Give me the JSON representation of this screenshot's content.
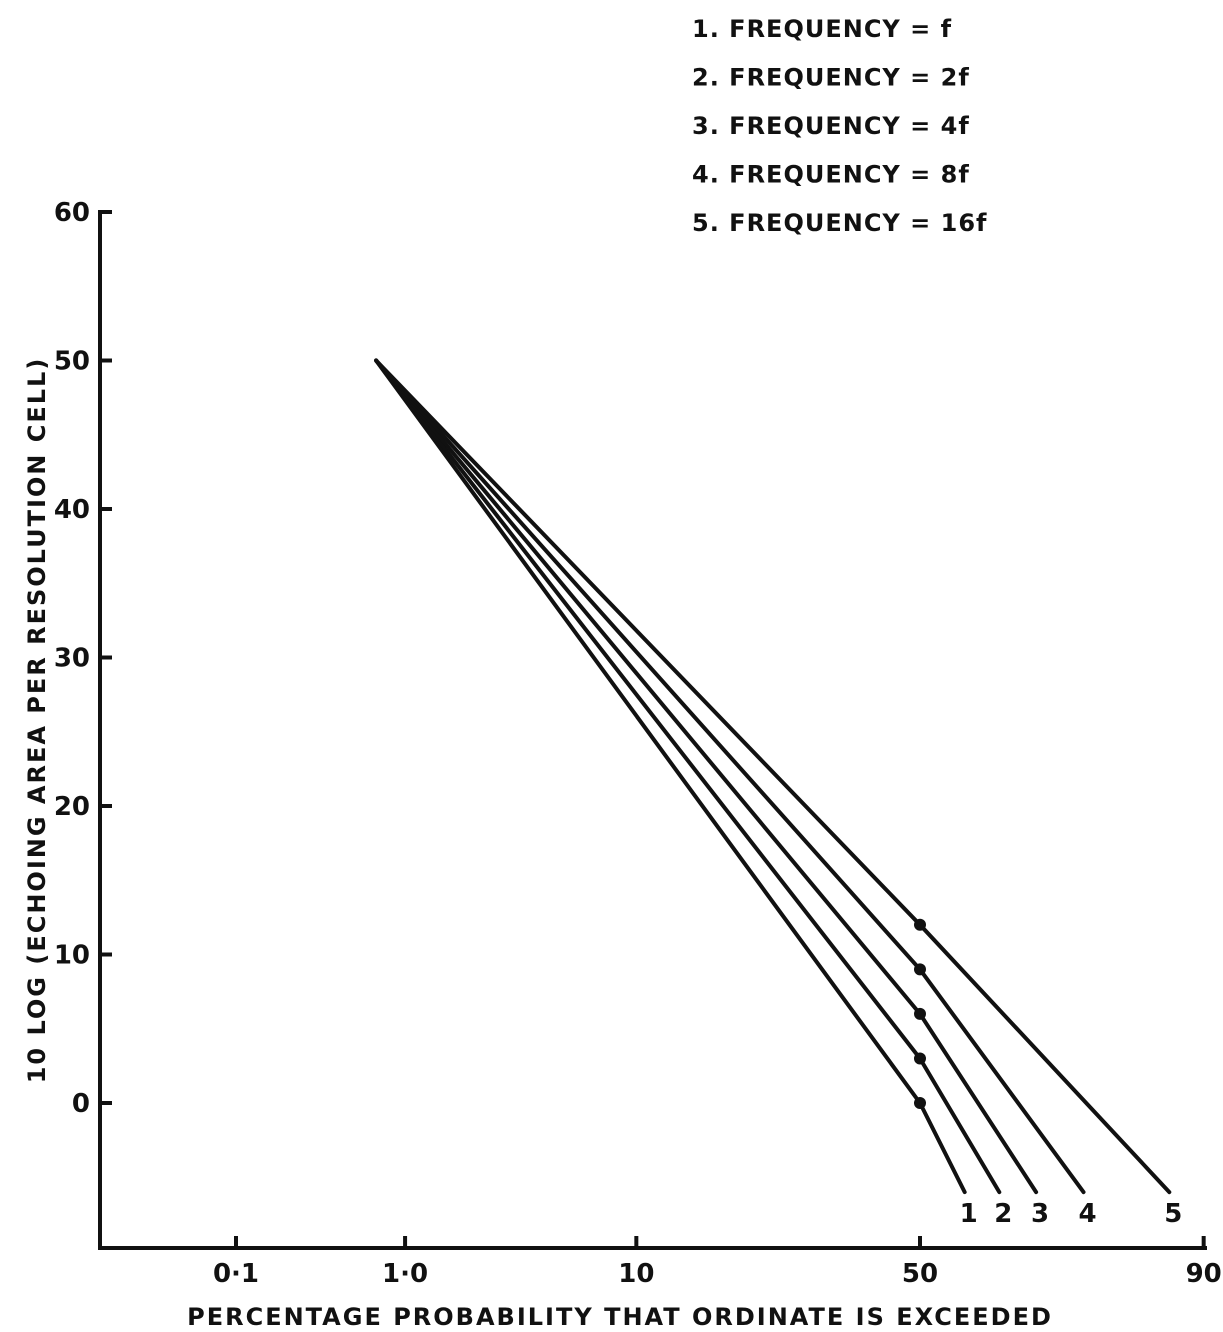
{
  "chart_data": {
    "type": "line",
    "title": "",
    "xlabel": "PERCENTAGE  PROBABILITY  THAT  ORDINATE  IS  EXCEEDED",
    "ylabel": "10 LOG (ECHOING  AREA PER  RESOLUTION CELL)",
    "x_scale": "normal-probability",
    "x_ticks": [
      0.1,
      1.0,
      10,
      50,
      90
    ],
    "x_tick_labels": [
      "0·1",
      "1·0",
      "10",
      "50",
      "90"
    ],
    "y_ticks": [
      0,
      10,
      20,
      30,
      40,
      50,
      60
    ],
    "y_tick_labels": [
      "0",
      "10",
      "20",
      "30",
      "40",
      "50",
      "60"
    ],
    "ylim": [
      -9,
      60
    ],
    "grid": false,
    "legend_position": "top-right",
    "legend": [
      "1. FREQUENCY = f",
      "2. FREQUENCY = 2f",
      "3. FREQUENCY = 4f",
      "4. FREQUENCY = 8f",
      "5. FREQUENCY = 16f"
    ],
    "series": [
      {
        "label": "1",
        "x": [
          0.7,
          50,
          58
        ],
        "y": [
          50,
          0,
          -6
        ],
        "marker_x": 50,
        "marker_y": 0
      },
      {
        "label": "2",
        "x": [
          0.7,
          50,
          64
        ],
        "y": [
          50,
          3,
          -6
        ],
        "marker_x": 50,
        "marker_y": 3
      },
      {
        "label": "3",
        "x": [
          0.7,
          50,
          70
        ],
        "y": [
          50,
          6,
          -6
        ],
        "marker_x": 50,
        "marker_y": 6
      },
      {
        "label": "4",
        "x": [
          0.7,
          50,
          77
        ],
        "y": [
          50,
          9,
          -6
        ],
        "marker_x": 50,
        "marker_y": 9
      },
      {
        "label": "5",
        "x": [
          0.7,
          50,
          87
        ],
        "y": [
          50,
          12,
          -6
        ],
        "marker_x": 50,
        "marker_y": 12
      }
    ]
  }
}
